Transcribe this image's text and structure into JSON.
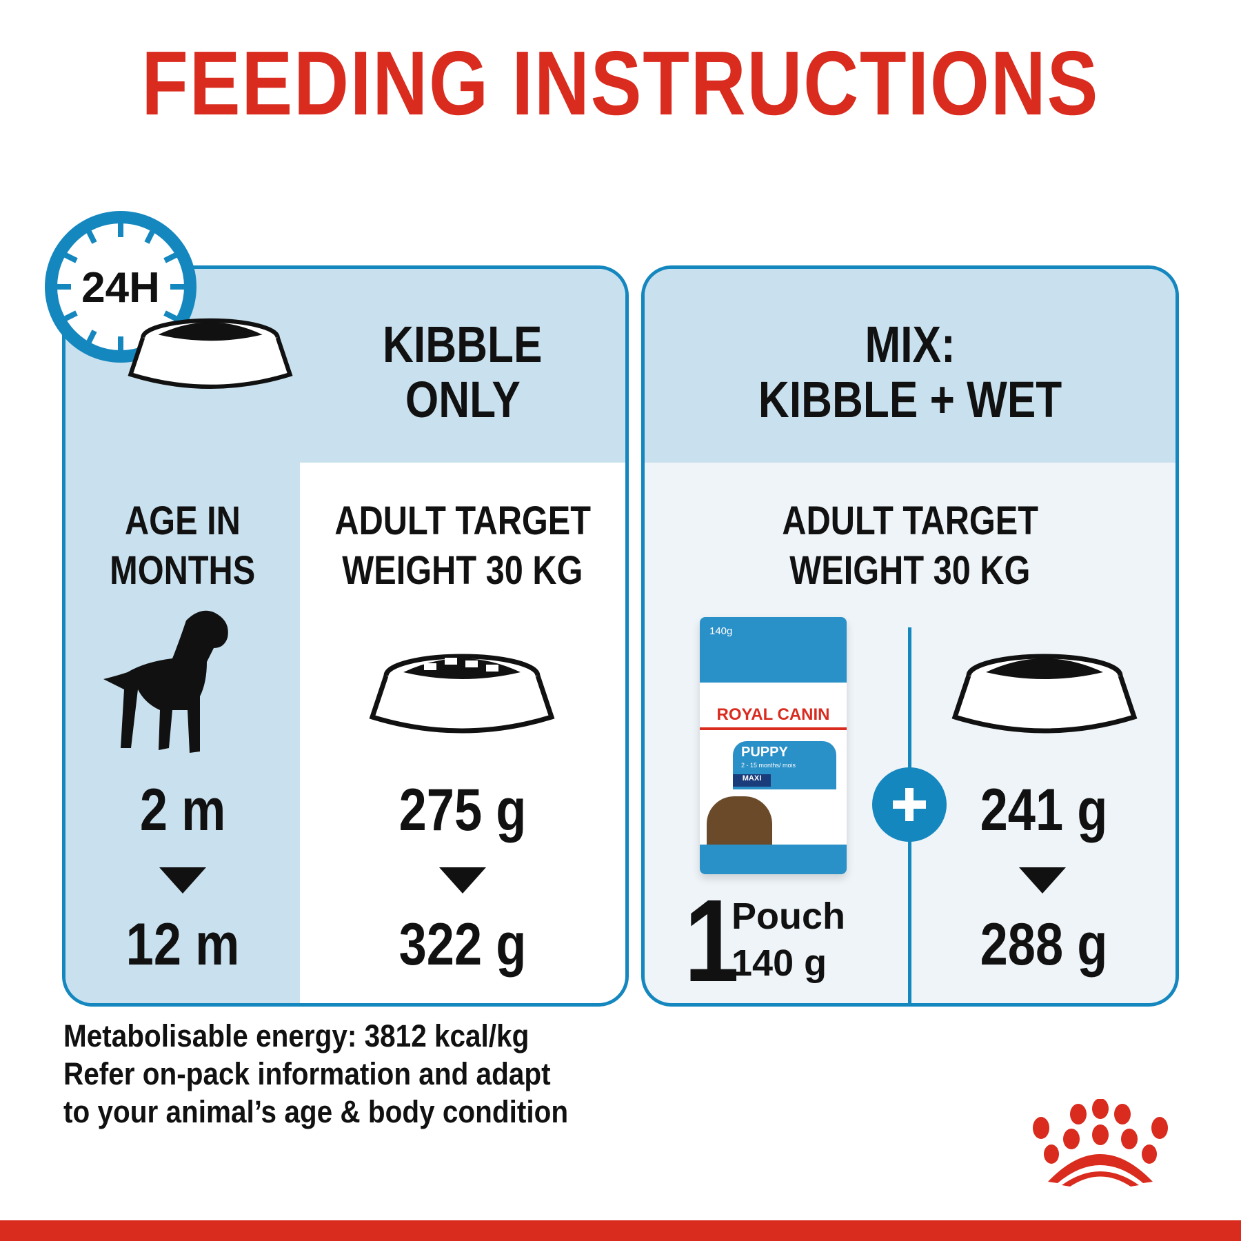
{
  "title": "FEEDING INSTRUCTIONS",
  "clock_label": "24H",
  "kibble_panel": {
    "heading": [
      "KIBBLE",
      "ONLY"
    ],
    "age_heading": [
      "AGE IN",
      "MONTHS"
    ],
    "weight_heading": [
      "ADULT TARGET",
      "WEIGHT 30 KG"
    ],
    "age_from": "2 m",
    "age_to": "12 m",
    "amount_from": "275 g",
    "amount_to": "322 g"
  },
  "mix_panel": {
    "heading": [
      "MIX:",
      "KIBBLE + WET"
    ],
    "weight_heading": [
      "ADULT TARGET",
      "WEIGHT 30 KG"
    ],
    "pouch_count": "1",
    "pouch_label": "Pouch",
    "pouch_weight": "140 g",
    "amount_from": "241 g",
    "amount_to": "288 g"
  },
  "pouch": {
    "weight": "140g",
    "brand": "ROYAL CANIN",
    "product": "PUPPY",
    "age_range": "2 - 15 months/ mois",
    "size": "MAXI"
  },
  "footer": [
    "Metabolisable energy: 3812 kcal/kg",
    "Refer on-pack information and adapt",
    "to your animal’s age & body condition"
  ],
  "colors": {
    "brand_red": "#d92b1e",
    "accent_blue": "#1587bf",
    "band_blue": "#c9e1ef"
  },
  "icons": [
    "clock-icon",
    "bowl-icon",
    "puppy-icon",
    "plus-icon",
    "crown-logo-icon"
  ]
}
